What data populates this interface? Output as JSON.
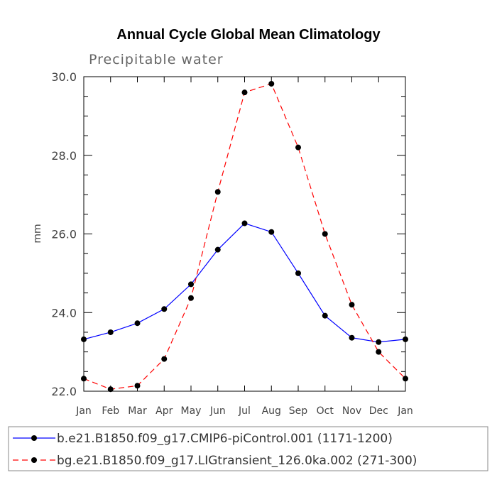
{
  "chart_data": {
    "type": "line",
    "title": "Annual Cycle Global Mean Climatology",
    "subtitle": "Precipitable water",
    "xlabel": "",
    "ylabel": "mm",
    "categories": [
      "Jan",
      "Feb",
      "Mar",
      "Apr",
      "May",
      "Jun",
      "Jul",
      "Aug",
      "Sep",
      "Oct",
      "Nov",
      "Dec",
      "Jan"
    ],
    "ylim": [
      22.0,
      30.0
    ],
    "yticks": [
      "22.0",
      "24.0",
      "26.0",
      "28.0",
      "30.0"
    ],
    "series": [
      {
        "name": "b.e21.B1850.f09_g17.CMIP6-piControl.001 (1171-1200)",
        "color": "#0000ff",
        "dash": "solid",
        "values": [
          23.32,
          23.5,
          23.73,
          24.09,
          24.72,
          25.6,
          26.27,
          26.05,
          25.0,
          23.92,
          23.36,
          23.25,
          23.32
        ]
      },
      {
        "name": "bg.e21.B1850.f09_g17.LIGtransient_126.0ka.002 (271-300)",
        "color": "#ff0000",
        "dash": "dashed",
        "values": [
          22.32,
          22.05,
          22.14,
          22.82,
          24.37,
          27.07,
          29.6,
          29.82,
          28.2,
          26.0,
          24.2,
          23.0,
          22.32
        ]
      }
    ],
    "legend": "bottom",
    "grid": false
  }
}
